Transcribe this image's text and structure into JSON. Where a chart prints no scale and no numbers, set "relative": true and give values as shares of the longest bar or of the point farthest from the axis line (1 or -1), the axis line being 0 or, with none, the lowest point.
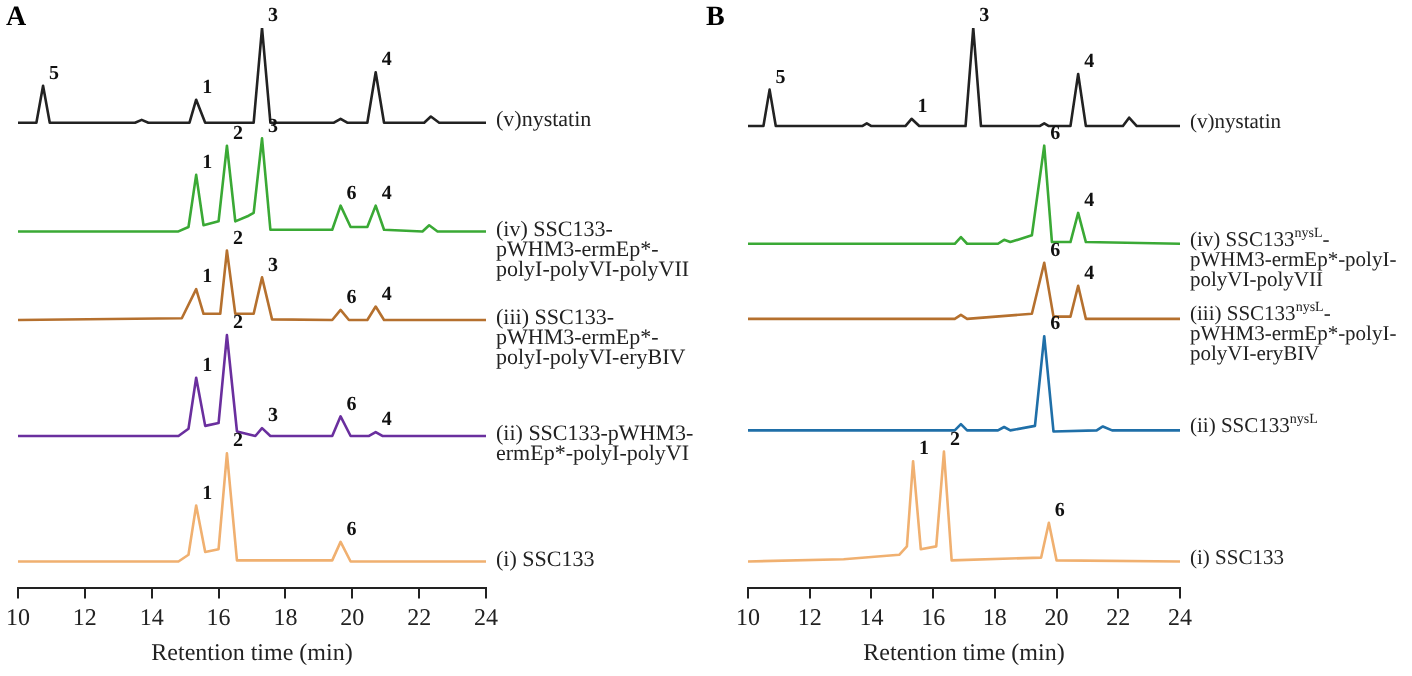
{
  "chart_data": [
    {
      "type": "line",
      "title": "A",
      "xlabel": "Retention time (min)",
      "xlim": [
        10,
        24
      ],
      "xticks": [
        10,
        12,
        14,
        16,
        18,
        20,
        22,
        24
      ],
      "relative": true,
      "series": [
        {
          "name": "(v)nystatin",
          "color": "#222222",
          "x": [
            10,
            10.55,
            10.75,
            10.95,
            13.5,
            13.7,
            13.9,
            15.13,
            15.33,
            15.6,
            17.05,
            17.3,
            17.55,
            19.45,
            19.65,
            19.85,
            20.45,
            20.7,
            20.95,
            22.15,
            22.35,
            22.6,
            24
          ],
          "values": [
            0.831,
            0.831,
            0.897,
            0.831,
            0.831,
            0.836,
            0.831,
            0.831,
            0.872,
            0.831,
            0.831,
            1,
            0.831,
            0.831,
            0.838,
            0.831,
            0.831,
            0.921,
            0.831,
            0.831,
            0.842,
            0.831,
            0.831
          ]
        },
        {
          "name": "(iv) SSC133-pWHM3-ermEp*-polyI-polyVI-polyVII",
          "color": "#3aa935",
          "x": [
            10,
            14.8,
            15.1,
            15.33,
            15.55,
            16.0,
            16.25,
            16.5,
            16.9,
            17.05,
            17.3,
            17.55,
            19.4,
            19.65,
            19.95,
            20.45,
            20.7,
            20.95,
            22.1,
            22.3,
            22.55,
            24
          ],
          "values": [
            0.637,
            0.637,
            0.645,
            0.738,
            0.648,
            0.655,
            0.79,
            0.655,
            0.665,
            0.67,
            0.803,
            0.64,
            0.64,
            0.683,
            0.645,
            0.645,
            0.683,
            0.64,
            0.637,
            0.648,
            0.637,
            0.637
          ]
        },
        {
          "name": "(iii) SSC133-pWHM3-ermEp*-polyI-polyVI-eryBIV",
          "color": "#b5702e",
          "x": [
            10,
            14.9,
            15.33,
            15.55,
            16.05,
            16.25,
            16.5,
            17.05,
            17.3,
            17.6,
            19.4,
            19.65,
            19.9,
            20.45,
            20.7,
            20.95,
            24
          ],
          "values": [
            0.479,
            0.482,
            0.534,
            0.49,
            0.49,
            0.603,
            0.49,
            0.49,
            0.555,
            0.48,
            0.479,
            0.497,
            0.479,
            0.479,
            0.503,
            0.479,
            0.479
          ]
        },
        {
          "name": "(ii) SSC133-pWHM3-ermEp*-polyI-polyVI",
          "color": "#6a2f9e",
          "x": [
            10,
            14.8,
            15.1,
            15.33,
            15.6,
            16.0,
            16.25,
            16.55,
            17.1,
            17.3,
            17.55,
            19.4,
            19.65,
            19.95,
            20.5,
            20.7,
            20.9,
            24
          ],
          "values": [
            0.272,
            0.272,
            0.285,
            0.376,
            0.29,
            0.295,
            0.452,
            0.28,
            0.272,
            0.286,
            0.272,
            0.272,
            0.307,
            0.272,
            0.272,
            0.279,
            0.272,
            0.272
          ]
        },
        {
          "name": "(i) SSC133",
          "color": "#f0b070",
          "x": [
            10,
            14.8,
            15.1,
            15.33,
            15.6,
            16.0,
            16.25,
            16.55,
            19.4,
            19.65,
            19.95,
            24
          ],
          "values": [
            0.048,
            0.048,
            0.06,
            0.148,
            0.065,
            0.07,
            0.241,
            0.05,
            0.05,
            0.083,
            0.048,
            0.048
          ]
        }
      ],
      "annotations": [
        {
          "text": "5",
          "x": 10.75,
          "y": 0.897
        },
        {
          "text": "1",
          "x": 15.33,
          "y": 0.872
        },
        {
          "text": "3",
          "x": 17.3,
          "y": 1
        },
        {
          "text": "4",
          "x": 20.7,
          "y": 0.921
        },
        {
          "text": "1",
          "x": 15.33,
          "y": 0.738
        },
        {
          "text": "2",
          "x": 16.25,
          "y": 0.79
        },
        {
          "text": "3",
          "x": 17.3,
          "y": 0.803
        },
        {
          "text": "6",
          "x": 19.65,
          "y": 0.683
        },
        {
          "text": "4",
          "x": 20.7,
          "y": 0.683
        },
        {
          "text": "1",
          "x": 15.33,
          "y": 0.534
        },
        {
          "text": "2",
          "x": 16.25,
          "y": 0.603
        },
        {
          "text": "3",
          "x": 17.3,
          "y": 0.555
        },
        {
          "text": "6",
          "x": 19.65,
          "y": 0.497
        },
        {
          "text": "4",
          "x": 20.7,
          "y": 0.503
        },
        {
          "text": "1",
          "x": 15.33,
          "y": 0.376
        },
        {
          "text": "2",
          "x": 16.25,
          "y": 0.452
        },
        {
          "text": "3",
          "x": 17.3,
          "y": 0.286
        },
        {
          "text": "6",
          "x": 19.65,
          "y": 0.307
        },
        {
          "text": "4",
          "x": 20.7,
          "y": 0.279
        },
        {
          "text": "1",
          "x": 15.33,
          "y": 0.148
        },
        {
          "text": "2",
          "x": 16.25,
          "y": 0.241
        },
        {
          "text": "6",
          "x": 19.65,
          "y": 0.083
        }
      ]
    },
    {
      "type": "line",
      "title": "B",
      "xlabel": "Retention time (min)",
      "xlim": [
        10,
        24
      ],
      "xticks": [
        10,
        12,
        14,
        16,
        18,
        20,
        22,
        24
      ],
      "relative": true,
      "series": [
        {
          "name": "(v)nystatin",
          "color": "#222222",
          "x": [
            10,
            10.5,
            10.7,
            10.9,
            13.7,
            13.85,
            14.0,
            15.1,
            15.3,
            15.55,
            17.05,
            17.3,
            17.55,
            19.45,
            19.6,
            19.75,
            20.45,
            20.7,
            20.95,
            22.15,
            22.35,
            22.6,
            24
          ],
          "values": [
            0.825,
            0.825,
            0.89,
            0.825,
            0.825,
            0.83,
            0.825,
            0.825,
            0.838,
            0.825,
            0.825,
            1,
            0.825,
            0.825,
            0.83,
            0.825,
            0.825,
            0.918,
            0.825,
            0.825,
            0.84,
            0.825,
            0.825
          ]
        },
        {
          "name": "(iv) SSC133$^{nysL}$-pWHM3-ermEp*-polyI-polyVI-polyVII",
          "color": "#3aa935",
          "x": [
            10,
            16.7,
            16.9,
            17.1,
            18.1,
            18.3,
            18.5,
            19.2,
            19.6,
            19.85,
            20.45,
            20.7,
            20.95,
            24
          ],
          "values": [
            0.615,
            0.615,
            0.627,
            0.615,
            0.615,
            0.622,
            0.618,
            0.63,
            0.79,
            0.618,
            0.618,
            0.67,
            0.618,
            0.615
          ]
        },
        {
          "name": "(iii) SSC133$^{nysL}$-pWHM3-ermEp*-polyI-polyVI-eryBIV",
          "color": "#b5702e",
          "x": [
            10,
            16.7,
            16.9,
            17.1,
            19.2,
            19.6,
            19.9,
            20.45,
            20.7,
            20.95,
            24
          ],
          "values": [
            0.481,
            0.481,
            0.488,
            0.481,
            0.49,
            0.581,
            0.485,
            0.485,
            0.54,
            0.481,
            0.481
          ]
        },
        {
          "name": "(ii) SSC133$^{nysL}$",
          "color": "#1f6fa8",
          "x": [
            10,
            16.7,
            16.9,
            17.1,
            18.1,
            18.3,
            18.5,
            19.3,
            19.6,
            19.9,
            21.3,
            21.5,
            21.8,
            24
          ],
          "values": [
            0.282,
            0.282,
            0.293,
            0.282,
            0.282,
            0.288,
            0.282,
            0.29,
            0.45,
            0.28,
            0.282,
            0.289,
            0.282,
            0.282
          ]
        },
        {
          "name": "(i) SSC133",
          "color": "#f0b070",
          "x": [
            10,
            13.1,
            14.9,
            15.15,
            15.35,
            15.6,
            16.1,
            16.35,
            16.6,
            19.5,
            19.75,
            20.0,
            24
          ],
          "values": [
            0.048,
            0.052,
            0.06,
            0.075,
            0.227,
            0.07,
            0.075,
            0.244,
            0.05,
            0.055,
            0.117,
            0.05,
            0.048
          ]
        }
      ],
      "annotations": [
        {
          "text": "5",
          "x": 10.7,
          "y": 0.89
        },
        {
          "text": "1",
          "x": 15.3,
          "y": 0.838
        },
        {
          "text": "3",
          "x": 17.3,
          "y": 1
        },
        {
          "text": "4",
          "x": 20.7,
          "y": 0.918
        },
        {
          "text": "6",
          "x": 19.6,
          "y": 0.79
        },
        {
          "text": "4",
          "x": 20.7,
          "y": 0.67
        },
        {
          "text": "6",
          "x": 19.6,
          "y": 0.581
        },
        {
          "text": "4",
          "x": 20.7,
          "y": 0.54
        },
        {
          "text": "6",
          "x": 19.6,
          "y": 0.45
        },
        {
          "text": "1",
          "x": 15.35,
          "y": 0.227
        },
        {
          "text": "2",
          "x": 16.35,
          "y": 0.244
        },
        {
          "text": "6",
          "x": 19.75,
          "y": 0.117
        }
      ]
    }
  ]
}
